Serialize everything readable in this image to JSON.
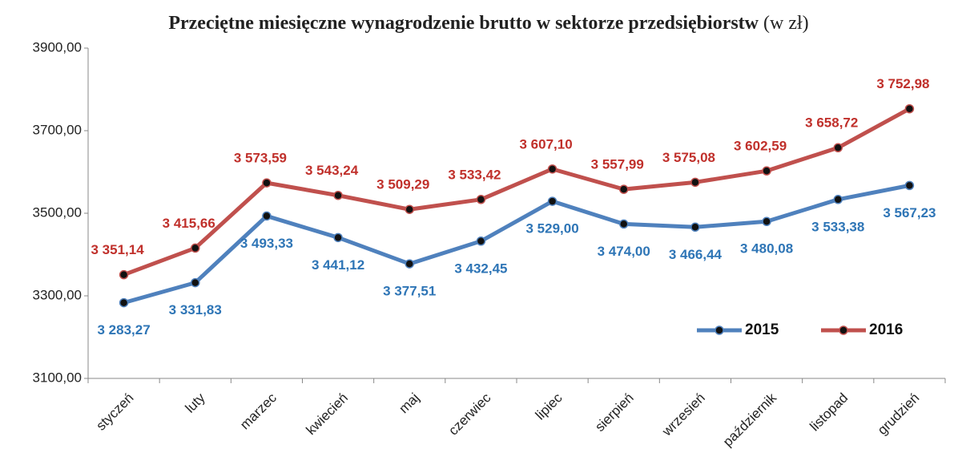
{
  "chart_data": {
    "type": "line",
    "title": "Przeciętne miesięczne wynagrodzenie brutto w sektorze przedsiębiorstw",
    "subtitle": "(w zł)",
    "categories": [
      "styczeń",
      "luty",
      "marzec",
      "kwiecień",
      "maj",
      "czerwiec",
      "lipiec",
      "sierpień",
      "wrzesień",
      "październik",
      "listopad",
      "grudzień"
    ],
    "series": [
      {
        "name": "2015",
        "color": "#4f81bd",
        "label_color": "#2e75b6",
        "values": [
          3283.27,
          3331.83,
          3493.33,
          3441.12,
          3377.51,
          3432.45,
          3529.0,
          3474.0,
          3466.44,
          3480.08,
          3533.38,
          3567.23
        ],
        "value_labels": [
          "3 283,27",
          "3 331,83",
          "3 493,33",
          "3 441,12",
          "3 377,51",
          "3 432,45",
          "3 529,00",
          "3 474,00",
          "3 466,44",
          "3 480,08",
          "3 533,38",
          "3 567,23"
        ]
      },
      {
        "name": "2016",
        "color": "#c0504d",
        "label_color": "#c0302b",
        "values": [
          3351.14,
          3415.66,
          3573.59,
          3543.24,
          3509.29,
          3533.42,
          3607.1,
          3557.99,
          3575.08,
          3602.59,
          3658.72,
          3752.98
        ],
        "value_labels": [
          "3 351,14",
          "3 415,66",
          "3 573,59",
          "3 543,24",
          "3 509,29",
          "3 533,42",
          "3 607,10",
          "3 557,99",
          "3 575,08",
          "3 602,59",
          "3 658,72",
          "3 752,98"
        ]
      }
    ],
    "ylim": [
      3100,
      3900
    ],
    "yticks": [
      {
        "value": 3100,
        "label": "3100,00"
      },
      {
        "value": 3300,
        "label": "3300,00"
      },
      {
        "value": 3500,
        "label": "3500,00"
      },
      {
        "value": 3700,
        "label": "3700,00"
      },
      {
        "value": 3900,
        "label": "3900,00"
      }
    ],
    "grid": false,
    "legend": "lower right"
  }
}
